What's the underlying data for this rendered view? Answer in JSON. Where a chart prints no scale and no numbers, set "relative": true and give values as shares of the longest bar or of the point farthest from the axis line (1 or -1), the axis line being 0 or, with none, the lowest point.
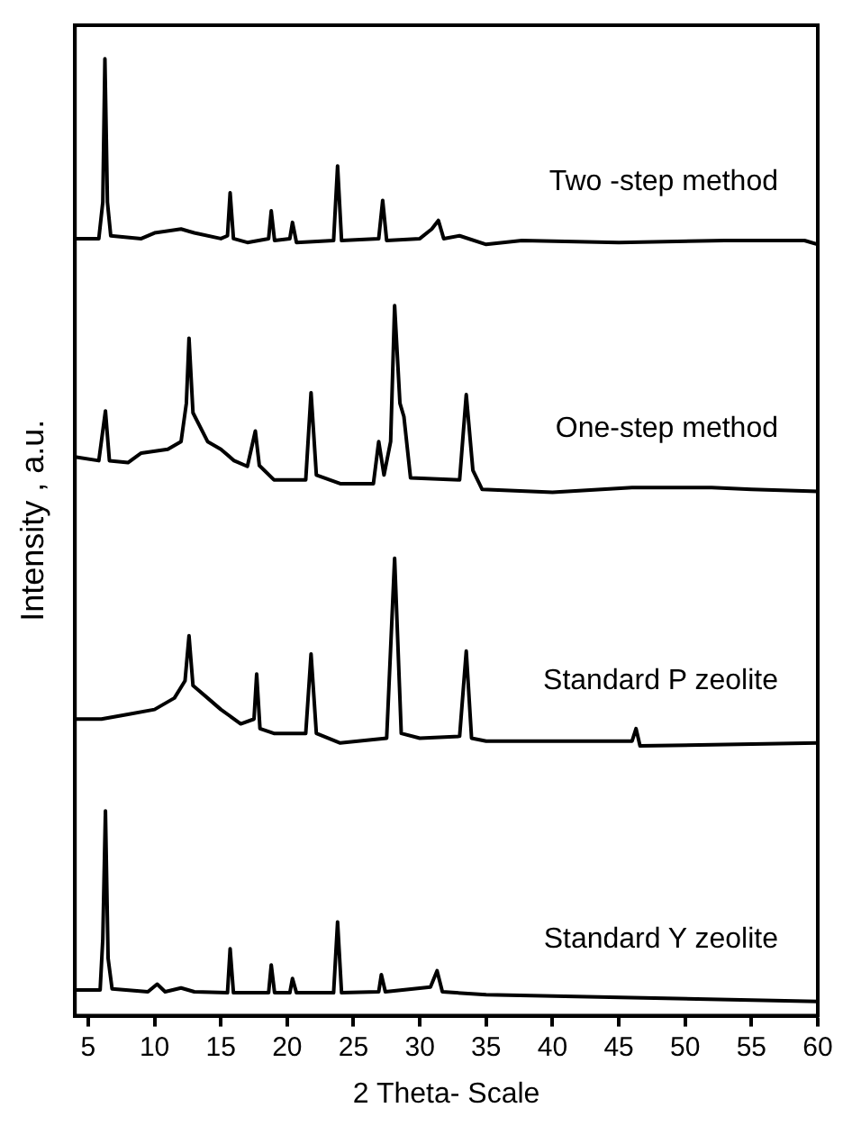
{
  "chart_data": {
    "type": "line",
    "relative": true,
    "xlabel": "2 Theta- Scale",
    "ylabel": "Intensity , a.u.",
    "xlim": [
      4,
      60
    ],
    "xticks": [
      5,
      10,
      15,
      20,
      25,
      30,
      35,
      40,
      45,
      50,
      55,
      60
    ],
    "series": [
      {
        "name": "Two -step method",
        "color": "#000000",
        "x": [
          4,
          5.8,
          6.1,
          6.26,
          6.45,
          6.7,
          9,
          10,
          12,
          13,
          15,
          15.5,
          15.7,
          15.95,
          17,
          18.6,
          18.8,
          19.05,
          20.2,
          20.4,
          20.7,
          23.5,
          23.8,
          24.1,
          26.9,
          27.2,
          27.5,
          30,
          30.9,
          31.4,
          31.8,
          33,
          35,
          37.7,
          45,
          53,
          59,
          60
        ],
        "values": [
          0.812,
          0.812,
          0.85,
          1.0,
          0.85,
          0.815,
          0.812,
          0.818,
          0.822,
          0.818,
          0.812,
          0.815,
          0.86,
          0.812,
          0.808,
          0.812,
          0.841,
          0.81,
          0.812,
          0.829,
          0.808,
          0.81,
          0.888,
          0.81,
          0.812,
          0.852,
          0.81,
          0.812,
          0.822,
          0.831,
          0.812,
          0.815,
          0.806,
          0.81,
          0.808,
          0.81,
          0.81,
          0.806
        ]
      },
      {
        "name": "One-step method",
        "color": "#000000",
        "x": [
          4,
          5.8,
          6.3,
          6.6,
          8,
          9,
          11,
          12,
          12.4,
          12.6,
          12.9,
          14,
          15,
          16,
          17,
          17.6,
          17.9,
          19,
          21.4,
          21.8,
          22.2,
          24,
          26.5,
          26.9,
          27.3,
          27.8,
          28.1,
          28.5,
          28.8,
          29.3,
          33,
          33.5,
          34,
          34.7,
          40,
          46,
          52,
          55,
          60
        ],
        "values": [
          0.584,
          0.58,
          0.632,
          0.58,
          0.578,
          0.588,
          0.592,
          0.6,
          0.64,
          0.708,
          0.63,
          0.6,
          0.592,
          0.58,
          0.574,
          0.611,
          0.575,
          0.56,
          0.56,
          0.651,
          0.565,
          0.556,
          0.556,
          0.6,
          0.565,
          0.6,
          0.742,
          0.64,
          0.626,
          0.562,
          0.56,
          0.649,
          0.57,
          0.55,
          0.547,
          0.552,
          0.552,
          0.55,
          0.548
        ]
      },
      {
        "name": "Standard P zeolite",
        "color": "#000000",
        "x": [
          4,
          6,
          8,
          10,
          11.5,
          12.3,
          12.6,
          12.9,
          14,
          15,
          16.5,
          17.5,
          17.7,
          17.95,
          19,
          21.4,
          21.8,
          22.2,
          24,
          27.5,
          28.1,
          28.6,
          30,
          33,
          33.5,
          33.9,
          35,
          46,
          46.3,
          46.6,
          60
        ],
        "values": [
          0.31,
          0.31,
          0.315,
          0.32,
          0.332,
          0.35,
          0.397,
          0.345,
          0.332,
          0.32,
          0.305,
          0.31,
          0.357,
          0.3,
          0.295,
          0.295,
          0.378,
          0.295,
          0.285,
          0.29,
          0.478,
          0.295,
          0.29,
          0.292,
          0.381,
          0.29,
          0.287,
          0.287,
          0.3,
          0.282,
          0.285
        ]
      },
      {
        "name": "Standard Y zeolite",
        "color": "#000000",
        "x": [
          4,
          5.9,
          6.1,
          6.3,
          6.5,
          6.8,
          9.5,
          10.2,
          10.8,
          12,
          13,
          15.5,
          15.7,
          15.95,
          18.6,
          18.8,
          19.05,
          20.2,
          20.4,
          20.7,
          23.5,
          23.8,
          24.1,
          26.9,
          27.1,
          27.4,
          30.8,
          31.3,
          31.7,
          35,
          60
        ],
        "values": [
          0.027,
          0.027,
          0.08,
          0.214,
          0.06,
          0.028,
          0.025,
          0.033,
          0.025,
          0.029,
          0.025,
          0.024,
          0.07,
          0.024,
          0.024,
          0.053,
          0.024,
          0.024,
          0.039,
          0.024,
          0.024,
          0.098,
          0.024,
          0.025,
          0.043,
          0.025,
          0.03,
          0.047,
          0.025,
          0.022,
          0.015
        ]
      }
    ]
  }
}
